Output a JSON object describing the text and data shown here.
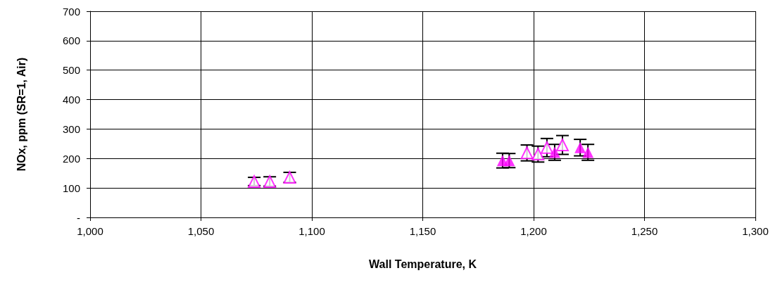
{
  "chart_data": {
    "type": "scatter",
    "xlabel": "Wall Temperature, K",
    "ylabel": "NOx, ppm (SR=1, Air)",
    "series": [
      {
        "color": "#ff00ff",
        "x": [
          1074,
          1081,
          1090,
          1197,
          1202,
          1206,
          1213
        ],
        "values": [
          122,
          122,
          136,
          219,
          215,
          237,
          246
        ],
        "errors": [
          14,
          16,
          17,
          27,
          27,
          31,
          32
        ]
      },
      {
        "color": "#ff00ff",
        "x": [
          1186,
          1189,
          1209.5,
          1221,
          1224.5
        ],
        "values": [
          193,
          193,
          221,
          237,
          221
        ],
        "errors": [
          25,
          24,
          27,
          28,
          27
        ]
      }
    ],
    "xlim": [
      1000,
      1300
    ],
    "xticks": [
      {
        "value": 1000,
        "label": "1,000"
      },
      {
        "value": 1050,
        "label": "1,050"
      },
      {
        "value": 1100,
        "label": "1,100"
      },
      {
        "value": 1150,
        "label": "1,150"
      },
      {
        "value": 1200,
        "label": "1,200"
      },
      {
        "value": 1250,
        "label": "1,250"
      },
      {
        "value": 1300,
        "label": "1,300"
      }
    ],
    "ylim": [
      0,
      700
    ],
    "yticks": [
      {
        "value": 0,
        "label": "-"
      },
      100,
      200,
      300,
      400,
      500,
      600,
      700
    ],
    "grid": true,
    "marker": "triangle"
  }
}
